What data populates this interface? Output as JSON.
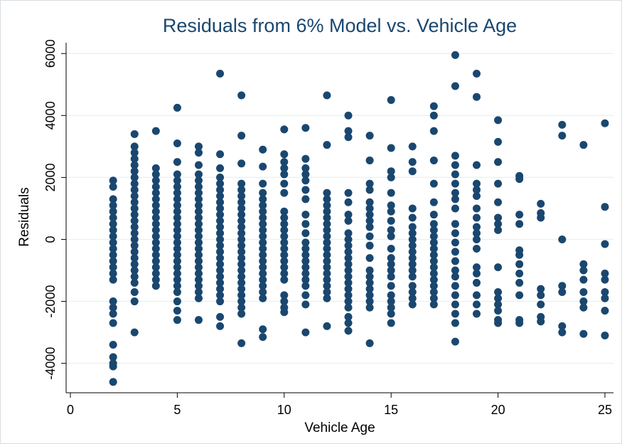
{
  "chart_data": {
    "type": "scatter",
    "title": "Residuals from 6% Model vs. Vehicle Age",
    "x_label": "Vehicle Age",
    "y_label": "Residuals",
    "color": "#1a476f",
    "grid": true,
    "xlim": [
      -0.2,
      25.4
    ],
    "xticks": [
      0,
      5,
      10,
      15,
      20,
      25
    ],
    "ylim": [
      -4950,
      6350
    ],
    "yticks": [
      -4000,
      -2000,
      0,
      2000,
      4000,
      6000
    ],
    "x": [
      2,
      2,
      2,
      2,
      2,
      2,
      2,
      2,
      2,
      2,
      2,
      2,
      2,
      2,
      2,
      2,
      2,
      2,
      2,
      2,
      2,
      2,
      2,
      2,
      2,
      3,
      3,
      3,
      3,
      3,
      3,
      3,
      3,
      3,
      3,
      3,
      3,
      3,
      3,
      3,
      3,
      3,
      3,
      3,
      3,
      3,
      3,
      3,
      3,
      3,
      3,
      3,
      4,
      4,
      4,
      4,
      4,
      4,
      4,
      4,
      4,
      4,
      4,
      4,
      4,
      4,
      4,
      4,
      4,
      4,
      4,
      4,
      4,
      5,
      5,
      5,
      5,
      5,
      5,
      5,
      5,
      5,
      5,
      5,
      5,
      5,
      5,
      5,
      5,
      5,
      5,
      5,
      5,
      5,
      5,
      5,
      5,
      5,
      5,
      6,
      6,
      6,
      6,
      6,
      6,
      6,
      6,
      6,
      6,
      6,
      6,
      6,
      6,
      6,
      6,
      6,
      6,
      6,
      6,
      6,
      6,
      6,
      6,
      6,
      7,
      7,
      7,
      7,
      7,
      7,
      7,
      7,
      7,
      7,
      7,
      7,
      7,
      7,
      7,
      7,
      7,
      7,
      7,
      7,
      7,
      7,
      7,
      7,
      7,
      7,
      8,
      8,
      8,
      8,
      8,
      8,
      8,
      8,
      8,
      8,
      8,
      8,
      8,
      8,
      8,
      8,
      8,
      8,
      8,
      8,
      8,
      8,
      8,
      8,
      8,
      8,
      9,
      9,
      9,
      9,
      9,
      9,
      9,
      9,
      9,
      9,
      9,
      9,
      9,
      9,
      9,
      9,
      9,
      9,
      9,
      9,
      9,
      9,
      9,
      10,
      10,
      10,
      10,
      10,
      10,
      10,
      10,
      10,
      10,
      10,
      10,
      10,
      10,
      10,
      10,
      10,
      10,
      10,
      10,
      10,
      10,
      10,
      11,
      11,
      11,
      11,
      11,
      11,
      11,
      11,
      11,
      11,
      11,
      11,
      11,
      11,
      11,
      11,
      11,
      11,
      11,
      11,
      11,
      12,
      12,
      12,
      12,
      12,
      12,
      12,
      12,
      12,
      12,
      12,
      12,
      12,
      12,
      12,
      12,
      12,
      12,
      12,
      12,
      12,
      13,
      13,
      13,
      13,
      13,
      13,
      13,
      13,
      13,
      13,
      13,
      13,
      13,
      13,
      13,
      13,
      13,
      13,
      13,
      13,
      13,
      13,
      13,
      14,
      14,
      14,
      14,
      14,
      14,
      14,
      14,
      14,
      14,
      14,
      14,
      14,
      14,
      14,
      14,
      14,
      14,
      14,
      14,
      15,
      15,
      15,
      15,
      15,
      15,
      15,
      15,
      15,
      15,
      15,
      15,
      15,
      15,
      15,
      15,
      15,
      15,
      15,
      15,
      15,
      16,
      16,
      16,
      16,
      16,
      16,
      16,
      16,
      16,
      16,
      16,
      16,
      16,
      16,
      16,
      16,
      16,
      16,
      17,
      17,
      17,
      17,
      17,
      17,
      17,
      17,
      17,
      17,
      17,
      17,
      17,
      17,
      17,
      17,
      17,
      17,
      17,
      17,
      17,
      18,
      18,
      18,
      18,
      18,
      18,
      18,
      18,
      18,
      18,
      18,
      18,
      18,
      18,
      18,
      18,
      18,
      18,
      18,
      18,
      18,
      18,
      19,
      19,
      19,
      19,
      19,
      19,
      19,
      19,
      19,
      19,
      19,
      19,
      19,
      19,
      19,
      19,
      19,
      19,
      20,
      20,
      20,
      20,
      20,
      20,
      20,
      20,
      20,
      20,
      20,
      20,
      20,
      20,
      20,
      21,
      21,
      21,
      21,
      21,
      21,
      21,
      21,
      21,
      21,
      21,
      21,
      22,
      22,
      22,
      22,
      22,
      22,
      22,
      22,
      23,
      23,
      23,
      23,
      23,
      23,
      23,
      24,
      24,
      24,
      24,
      24,
      24,
      24,
      24,
      25,
      25,
      25,
      25,
      25,
      25,
      25,
      25,
      25
    ],
    "values": [
      1900,
      1700,
      1300,
      1100,
      900,
      700,
      500,
      300,
      100,
      -100,
      -300,
      -500,
      -700,
      -900,
      -1100,
      -1300,
      -2000,
      -2200,
      -2400,
      -2700,
      -3400,
      -3800,
      -4000,
      -4100,
      -4600,
      3400,
      3000,
      2800,
      2600,
      2400,
      2200,
      2000,
      1800,
      1600,
      1400,
      1200,
      1000,
      800,
      600,
      400,
      200,
      0,
      -200,
      -400,
      -600,
      -800,
      -1000,
      -1200,
      -1400,
      -1700,
      -2000,
      -3000,
      3500,
      2300,
      2100,
      1900,
      1700,
      1500,
      1300,
      1100,
      900,
      700,
      500,
      300,
      100,
      -100,
      -300,
      -500,
      -700,
      -900,
      -1100,
      -1300,
      -1500,
      4250,
      3100,
      2500,
      2100,
      1900,
      1700,
      1500,
      1300,
      1100,
      900,
      700,
      500,
      300,
      100,
      -100,
      -300,
      -500,
      -700,
      -900,
      -1100,
      -1300,
      -1500,
      -1700,
      -2000,
      -2300,
      -2600,
      3000,
      2800,
      2400,
      2100,
      1900,
      1700,
      1500,
      1300,
      1100,
      900,
      700,
      500,
      300,
      100,
      -100,
      -300,
      -500,
      -700,
      -900,
      -1100,
      -1300,
      -1500,
      -1700,
      -1900,
      -2600,
      5350,
      2750,
      2300,
      2000,
      1800,
      1600,
      1400,
      1200,
      1000,
      800,
      600,
      400,
      200,
      0,
      -200,
      -400,
      -600,
      -800,
      -1000,
      -1200,
      -1400,
      -1600,
      -1800,
      -2000,
      -2500,
      -2800,
      4650,
      3350,
      2450,
      1800,
      1600,
      1400,
      1200,
      1000,
      800,
      600,
      400,
      200,
      0,
      -200,
      -400,
      -600,
      -800,
      -1000,
      -1200,
      -1400,
      -1600,
      -1800,
      -2000,
      -2200,
      -2400,
      -3350,
      2900,
      2350,
      1800,
      1500,
      1300,
      1100,
      900,
      700,
      500,
      300,
      100,
      -100,
      -300,
      -500,
      -700,
      -900,
      -1100,
      -1300,
      -1500,
      -1700,
      -1900,
      -2900,
      -3150,
      3550,
      2750,
      2500,
      2300,
      2100,
      1800,
      1500,
      900,
      700,
      500,
      300,
      100,
      -100,
      -300,
      -500,
      -700,
      -900,
      -1100,
      -1300,
      -1800,
      -2000,
      -2200,
      -2350,
      3600,
      2600,
      2300,
      2100,
      1900,
      1600,
      1300,
      800,
      500,
      200,
      -100,
      -300,
      -500,
      -700,
      -900,
      -1100,
      -1300,
      -1500,
      -1800,
      -2100,
      -3000,
      4650,
      3050,
      1500,
      1300,
      1100,
      900,
      700,
      500,
      300,
      100,
      -100,
      -300,
      -500,
      -700,
      -900,
      -1100,
      -1300,
      -1500,
      -1700,
      -1900,
      -2800,
      4000,
      3500,
      3300,
      1500,
      1200,
      800,
      600,
      200,
      0,
      -200,
      -400,
      -600,
      -800,
      -1000,
      -1200,
      -1400,
      -1600,
      -1800,
      -2000,
      -2200,
      -2500,
      -2700,
      -2950,
      3350,
      2550,
      1800,
      1600,
      1200,
      1000,
      800,
      600,
      400,
      100,
      -200,
      -600,
      -1000,
      -1200,
      -1400,
      -1600,
      -1800,
      -2000,
      -2200,
      -3350,
      4500,
      2950,
      2200,
      2000,
      1500,
      1100,
      900,
      600,
      300,
      100,
      -300,
      -600,
      -800,
      -1000,
      -1200,
      -1500,
      -1800,
      -2000,
      -2200,
      -2400,
      -2700,
      3000,
      2500,
      2200,
      1000,
      700,
      400,
      200,
      0,
      -200,
      -400,
      -600,
      -800,
      -1000,
      -1200,
      -1500,
      -1700,
      -1900,
      -2100,
      4300,
      4000,
      3500,
      2550,
      1800,
      1200,
      800,
      500,
      300,
      100,
      -100,
      -300,
      -500,
      -700,
      -900,
      -1100,
      -1300,
      -1500,
      -1700,
      -1900,
      -2100,
      5950,
      4950,
      2700,
      2400,
      2100,
      1800,
      1500,
      1300,
      1000,
      500,
      200,
      -100,
      -400,
      -700,
      -1000,
      -1200,
      -1500,
      -1800,
      -2100,
      -2400,
      -2700,
      -3300,
      5350,
      4600,
      2400,
      1800,
      1600,
      1400,
      1000,
      700,
      400,
      200,
      0,
      -300,
      -900,
      -1100,
      -1400,
      -1800,
      -2100,
      -2400,
      3850,
      3150,
      2500,
      1800,
      1200,
      700,
      500,
      300,
      -900,
      -1700,
      -1900,
      -2100,
      -2300,
      -2600,
      -2700,
      2050,
      1950,
      800,
      500,
      -350,
      -500,
      -800,
      -1100,
      -1400,
      -1800,
      -2600,
      -2700,
      1150,
      850,
      700,
      -1600,
      -1800,
      -2100,
      -2500,
      -2650,
      3700,
      3350,
      0,
      -1500,
      -1700,
      -2800,
      -3000,
      3050,
      -800,
      -1000,
      -1300,
      -1700,
      -2000,
      -2200,
      -3050,
      3750,
      1050,
      -150,
      -1100,
      -1300,
      -1700,
      -1900,
      -2300,
      -3100
    ]
  }
}
